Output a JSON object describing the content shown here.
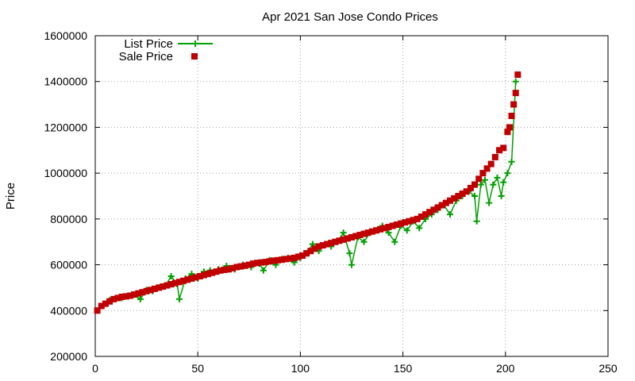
{
  "chart_data": {
    "type": "scatter",
    "title": "Apr 2021 San Jose Condo Prices",
    "xlabel": "",
    "ylabel": "Price",
    "xlim": [
      0,
      250
    ],
    "ylim": [
      200000,
      1600000
    ],
    "xticks": [
      0,
      50,
      100,
      150,
      200,
      250
    ],
    "yticks": [
      200000,
      400000,
      600000,
      800000,
      1000000,
      1200000,
      1400000,
      1600000
    ],
    "grid": true,
    "legend_position": "top-left",
    "colors": {
      "list": "#00a000",
      "sale": "#c00000"
    },
    "series": [
      {
        "name": "List Price",
        "style": "line-plus",
        "x": [
          1,
          4,
          7,
          10,
          13,
          16,
          19,
          22,
          25,
          28,
          31,
          34,
          37,
          40,
          41,
          44,
          47,
          50,
          53,
          56,
          60,
          64,
          68,
          72,
          76,
          80,
          82,
          85,
          88,
          91,
          94,
          97,
          100,
          103,
          106,
          109,
          112,
          115,
          118,
          121,
          124,
          125,
          128,
          131,
          134,
          137,
          140,
          143,
          146,
          149,
          152,
          155,
          158,
          161,
          164,
          167,
          170,
          173,
          176,
          179,
          182,
          185,
          186,
          188,
          190,
          192,
          194,
          196,
          198,
          199,
          201,
          203,
          205
        ],
        "y": [
          400000,
          420000,
          445000,
          450000,
          455000,
          465000,
          470000,
          450000,
          490000,
          485000,
          500000,
          505000,
          550000,
          515000,
          450000,
          540000,
          560000,
          540000,
          570000,
          575000,
          580000,
          595000,
          580000,
          600000,
          590000,
          605000,
          575000,
          620000,
          600000,
          625000,
          630000,
          610000,
          630000,
          650000,
          690000,
          660000,
          690000,
          680000,
          700000,
          740000,
          650000,
          600000,
          720000,
          700000,
          740000,
          750000,
          770000,
          740000,
          700000,
          770000,
          750000,
          790000,
          760000,
          800000,
          820000,
          840000,
          860000,
          820000,
          880000,
          900000,
          920000,
          900000,
          790000,
          950000,
          970000,
          870000,
          950000,
          980000,
          900000,
          960000,
          1000000,
          1050000,
          1400000
        ]
      },
      {
        "name": "Sale Price",
        "style": "filled-square",
        "x": [
          1,
          3,
          5,
          7,
          9,
          11,
          13,
          15,
          17,
          19,
          21,
          23,
          25,
          27,
          29,
          31,
          33,
          35,
          37,
          39,
          41,
          43,
          45,
          47,
          49,
          51,
          53,
          55,
          57,
          59,
          61,
          63,
          65,
          67,
          69,
          71,
          73,
          75,
          77,
          79,
          81,
          83,
          85,
          87,
          89,
          91,
          93,
          95,
          97,
          99,
          101,
          103,
          105,
          107,
          109,
          111,
          113,
          115,
          117,
          119,
          121,
          123,
          125,
          127,
          129,
          131,
          133,
          135,
          137,
          139,
          141,
          143,
          145,
          147,
          149,
          151,
          153,
          155,
          157,
          159,
          161,
          163,
          165,
          167,
          169,
          171,
          173,
          175,
          177,
          179,
          181,
          183,
          185,
          187,
          189,
          191,
          193,
          195,
          197,
          199,
          201,
          202,
          203,
          204,
          205,
          206
        ],
        "y": [
          400000,
          420000,
          430000,
          440000,
          450000,
          455000,
          460000,
          462000,
          465000,
          470000,
          475000,
          480000,
          485000,
          490000,
          495000,
          500000,
          505000,
          510000,
          515000,
          520000,
          525000,
          530000,
          535000,
          540000,
          545000,
          550000,
          555000,
          560000,
          565000,
          570000,
          575000,
          578000,
          580000,
          585000,
          590000,
          593000,
          596000,
          600000,
          605000,
          608000,
          610000,
          612000,
          615000,
          618000,
          620000,
          622000,
          625000,
          627000,
          630000,
          635000,
          640000,
          650000,
          660000,
          670000,
          680000,
          685000,
          690000,
          695000,
          700000,
          705000,
          710000,
          715000,
          720000,
          725000,
          730000,
          735000,
          740000,
          745000,
          750000,
          755000,
          760000,
          765000,
          770000,
          775000,
          780000,
          785000,
          790000,
          795000,
          800000,
          810000,
          820000,
          830000,
          840000,
          850000,
          860000,
          870000,
          880000,
          890000,
          900000,
          910000,
          920000,
          935000,
          950000,
          975000,
          1000000,
          1020000,
          1040000,
          1070000,
          1100000,
          1110000,
          1180000,
          1200000,
          1250000,
          1300000,
          1350000,
          1430000
        ]
      }
    ]
  }
}
